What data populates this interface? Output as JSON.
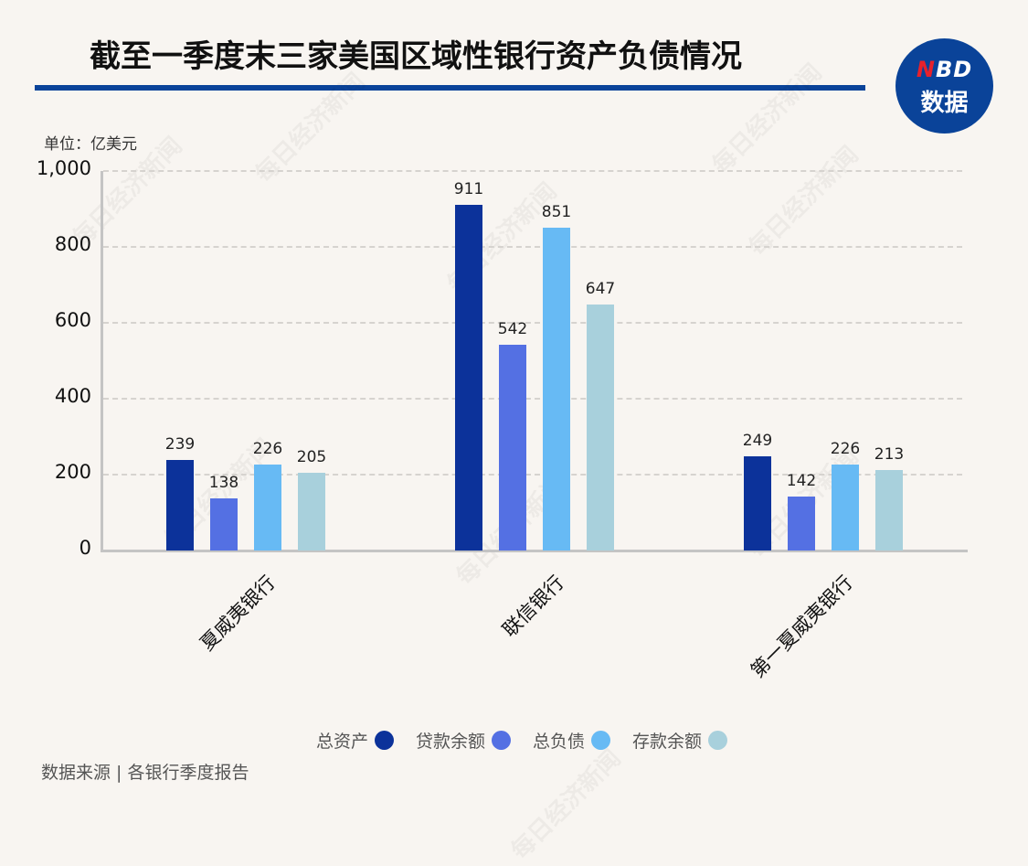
{
  "header": {
    "title": "截至一季度末三家美国区域性银行资产负债情况",
    "logo_line1_n": "N",
    "logo_line1_rest": "BD",
    "logo_line2": "数据"
  },
  "unit_label": "单位：亿美元",
  "watermark": "每日经济新闻",
  "footer": {
    "source": "数据来源 | 各银行季度报告"
  },
  "colors": {
    "title_rule": "#0a4399",
    "logo_bg": "#0a4399",
    "logo_accent": "#e8212b",
    "series": [
      "#0c329a",
      "#5470e3",
      "#67baf4",
      "#a8d0dc"
    ]
  },
  "chart_data": {
    "type": "bar",
    "title": "截至一季度末三家美国区域性银行资产负债情况",
    "xlabel": "",
    "ylabel": "单位：亿美元",
    "ylim": [
      0,
      1000
    ],
    "yticks": [
      "0",
      "200",
      "400",
      "600",
      "800",
      "1,000"
    ],
    "grid": true,
    "legend_position": "bottom",
    "categories": [
      "夏威夷银行",
      "联信银行",
      "第一夏威夷银行"
    ],
    "series": [
      {
        "name": "总资产",
        "color": "#0c329a",
        "values": [
          239,
          911,
          249
        ]
      },
      {
        "name": "贷款余额",
        "color": "#5470e3",
        "values": [
          138,
          542,
          142
        ]
      },
      {
        "name": "总负债",
        "color": "#67baf4",
        "values": [
          226,
          851,
          226
        ]
      },
      {
        "name": "存款余额",
        "color": "#a8d0dc",
        "values": [
          205,
          647,
          213
        ]
      }
    ]
  }
}
